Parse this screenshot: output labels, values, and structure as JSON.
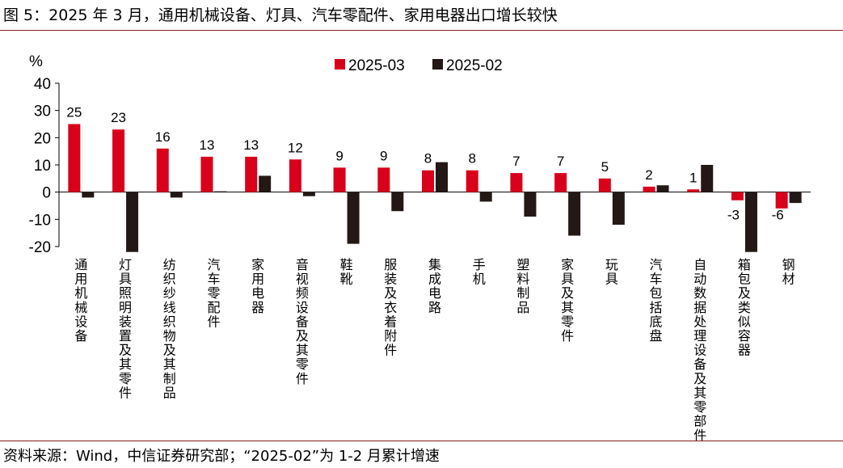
{
  "figure": {
    "title": "图 5：2025 年 3 月，通用机械设备、灯具、汽车零配件、家用电器出口增长较快",
    "source": "资料来源：Wind，中信证券研究部；“2025-02”为 1-2 月累计增速"
  },
  "colors": {
    "series_2025_03": "#d9001b",
    "series_2025_02": "#231815",
    "rule": "#8b1a1a"
  },
  "chart_data": {
    "type": "bar",
    "title": "",
    "ylabel": "%",
    "xlabel": "",
    "ylim": [
      -20,
      40
    ],
    "yticks": [
      40,
      30,
      20,
      10,
      0,
      -10,
      -20
    ],
    "legend": "top-center",
    "categories": [
      "通用机械设备",
      "灯具照明装置及其零件",
      "纺织纱线织物及其制品",
      "汽车零配件",
      "家用电器",
      "音视频设备及其零件",
      "鞋靴",
      "服装及衣着附件",
      "集成电路",
      "手机",
      "塑料制品",
      "家具及其零件",
      "玩具",
      "汽车包括底盘",
      "自动数据处理设备及其零部件",
      "箱包及类似容器",
      "钢材"
    ],
    "series": [
      {
        "name": "2025-03",
        "values": [
          25,
          23,
          16,
          13,
          13,
          12,
          9,
          9,
          8,
          8,
          7,
          7,
          5,
          2,
          1,
          -3,
          -6
        ]
      },
      {
        "name": "2025-02",
        "values": [
          -2,
          -22,
          -2,
          0.3,
          6,
          -1.5,
          -19,
          -7,
          11,
          -3.5,
          -9,
          -16,
          -12,
          2.5,
          10,
          -22,
          -4
        ]
      }
    ],
    "data_labels": [
      "25",
      "23",
      "16",
      "13",
      "13",
      "12",
      "9",
      "9",
      "8",
      "8",
      "7",
      "7",
      "5",
      "2",
      "1",
      "-3",
      "-6"
    ]
  }
}
